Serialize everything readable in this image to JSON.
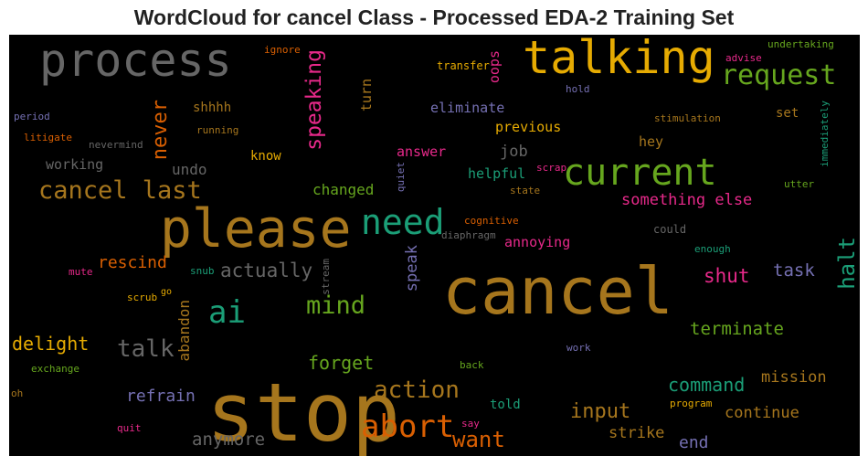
{
  "chart_data": {
    "type": "wordcloud",
    "title": "WordCloud for cancel Class - Processed EDA-2 Training Set",
    "background": "#000000",
    "palette": [
      "#e7298a",
      "#d95f02",
      "#1b9e77",
      "#66a61e",
      "#e6ab02",
      "#a6761d",
      "#666666",
      "#7570b3"
    ],
    "words": [
      {
        "text": "stop",
        "color": "#a6761d",
        "vertical": false
      },
      {
        "text": "cancel",
        "color": "#a6761d",
        "vertical": false
      },
      {
        "text": "please",
        "color": "#a6761d",
        "vertical": false
      },
      {
        "text": "talking",
        "color": "#e6ab02",
        "vertical": false
      },
      {
        "text": "process",
        "color": "#666666",
        "vertical": false
      },
      {
        "text": "current",
        "color": "#66a61e",
        "vertical": false
      },
      {
        "text": "need",
        "color": "#1b9e77",
        "vertical": false
      },
      {
        "text": "abort",
        "color": "#d95f02",
        "vertical": false
      },
      {
        "text": "ai",
        "color": "#1b9e77",
        "vertical": false
      },
      {
        "text": "cancel last",
        "color": "#a6761d",
        "vertical": false
      },
      {
        "text": "request",
        "color": "#66a61e",
        "vertical": false
      },
      {
        "text": "mind",
        "color": "#66a61e",
        "vertical": false
      },
      {
        "text": "action",
        "color": "#a6761d",
        "vertical": false
      },
      {
        "text": "talk",
        "color": "#666666",
        "vertical": false
      },
      {
        "text": "want",
        "color": "#d95f02",
        "vertical": false
      },
      {
        "text": "speaking",
        "color": "#e7298a",
        "vertical": true
      },
      {
        "text": "never",
        "color": "#d95f02",
        "vertical": true
      },
      {
        "text": "halt",
        "color": "#1b9e77",
        "vertical": true
      },
      {
        "text": "actually",
        "color": "#666666",
        "vertical": false
      },
      {
        "text": "shut",
        "color": "#e7298a",
        "vertical": false
      },
      {
        "text": "input",
        "color": "#a6761d",
        "vertical": false
      },
      {
        "text": "command",
        "color": "#1b9e77",
        "vertical": false
      },
      {
        "text": "delight",
        "color": "#e6ab02",
        "vertical": false
      },
      {
        "text": "forget",
        "color": "#66a61e",
        "vertical": false
      },
      {
        "text": "task",
        "color": "#7570b3",
        "vertical": false
      },
      {
        "text": "refrain",
        "color": "#7570b3",
        "vertical": false
      },
      {
        "text": "rescind",
        "color": "#d95f02",
        "vertical": false
      },
      {
        "text": "end",
        "color": "#7570b3",
        "vertical": false
      },
      {
        "text": "anymore",
        "color": "#666666",
        "vertical": false
      },
      {
        "text": "terminate",
        "color": "#66a61e",
        "vertical": false
      },
      {
        "text": "something else",
        "color": "#e7298a",
        "vertical": false
      },
      {
        "text": "mission",
        "color": "#a6761d",
        "vertical": false
      },
      {
        "text": "continue",
        "color": "#a6761d",
        "vertical": false
      },
      {
        "text": "strike",
        "color": "#a6761d",
        "vertical": false
      },
      {
        "text": "speak",
        "color": "#7570b3",
        "vertical": true
      },
      {
        "text": "abandon",
        "color": "#a6761d",
        "vertical": true
      },
      {
        "text": "undo",
        "color": "#666666",
        "vertical": false
      },
      {
        "text": "changed",
        "color": "#66a61e",
        "vertical": false
      },
      {
        "text": "eliminate",
        "color": "#7570b3",
        "vertical": false
      },
      {
        "text": "previous",
        "color": "#e6ab02",
        "vertical": false
      },
      {
        "text": "job",
        "color": "#666666",
        "vertical": false
      },
      {
        "text": "answer",
        "color": "#e7298a",
        "vertical": false
      },
      {
        "text": "helpful",
        "color": "#1b9e77",
        "vertical": false
      },
      {
        "text": "annoying",
        "color": "#e7298a",
        "vertical": false
      },
      {
        "text": "hey",
        "color": "#a6761d",
        "vertical": false
      },
      {
        "text": "told",
        "color": "#1b9e77",
        "vertical": false
      },
      {
        "text": "working",
        "color": "#666666",
        "vertical": false
      },
      {
        "text": "know",
        "color": "#e6ab02",
        "vertical": false
      },
      {
        "text": "shhhh",
        "color": "#a6761d",
        "vertical": false
      },
      {
        "text": "turn",
        "color": "#a6761d",
        "vertical": true
      },
      {
        "text": "oops",
        "color": "#e7298a",
        "vertical": true
      },
      {
        "text": "set",
        "color": "#a6761d",
        "vertical": false
      },
      {
        "text": "transfer",
        "color": "#e6ab02",
        "vertical": false
      },
      {
        "text": "hold",
        "color": "#7570b3",
        "vertical": false
      },
      {
        "text": "stimulation",
        "color": "#a6761d",
        "vertical": false
      },
      {
        "text": "undertaking",
        "color": "#66a61e",
        "vertical": false
      },
      {
        "text": "advise",
        "color": "#e7298a",
        "vertical": false
      },
      {
        "text": "immediately",
        "color": "#1b9e77",
        "vertical": true
      },
      {
        "text": "utter",
        "color": "#66a61e",
        "vertical": false
      },
      {
        "text": "could",
        "color": "#666666",
        "vertical": false
      },
      {
        "text": "enough",
        "color": "#1b9e77",
        "vertical": false
      },
      {
        "text": "work",
        "color": "#7570b3",
        "vertical": false
      },
      {
        "text": "program",
        "color": "#e6ab02",
        "vertical": false
      },
      {
        "text": "say",
        "color": "#e7298a",
        "vertical": false
      },
      {
        "text": "back",
        "color": "#66a61e",
        "vertical": false
      },
      {
        "text": "cognitive",
        "color": "#d95f02",
        "vertical": false
      },
      {
        "text": "diaphragm",
        "color": "#666666",
        "vertical": false
      },
      {
        "text": "state",
        "color": "#a6761d",
        "vertical": false
      },
      {
        "text": "scrap",
        "color": "#e7298a",
        "vertical": false
      },
      {
        "text": "quiet",
        "color": "#7570b3",
        "vertical": true
      },
      {
        "text": "stream",
        "color": "#666666",
        "vertical": true
      },
      {
        "text": "snub",
        "color": "#1b9e77",
        "vertical": false
      },
      {
        "text": "go",
        "color": "#e6ab02",
        "vertical": false
      },
      {
        "text": "scrub",
        "color": "#e6ab02",
        "vertical": false
      },
      {
        "text": "mute",
        "color": "#e7298a",
        "vertical": false
      },
      {
        "text": "exchange",
        "color": "#66a61e",
        "vertical": false
      },
      {
        "text": "oh",
        "color": "#a6761d",
        "vertical": false
      },
      {
        "text": "quit",
        "color": "#e7298a",
        "vertical": false
      },
      {
        "text": "period",
        "color": "#7570b3",
        "vertical": false
      },
      {
        "text": "litigate",
        "color": "#d95f02",
        "vertical": false
      },
      {
        "text": "nevermind",
        "color": "#666666",
        "vertical": false
      },
      {
        "text": "running",
        "color": "#a6761d",
        "vertical": false
      },
      {
        "text": "ignore",
        "color": "#d95f02",
        "vertical": false
      }
    ]
  }
}
